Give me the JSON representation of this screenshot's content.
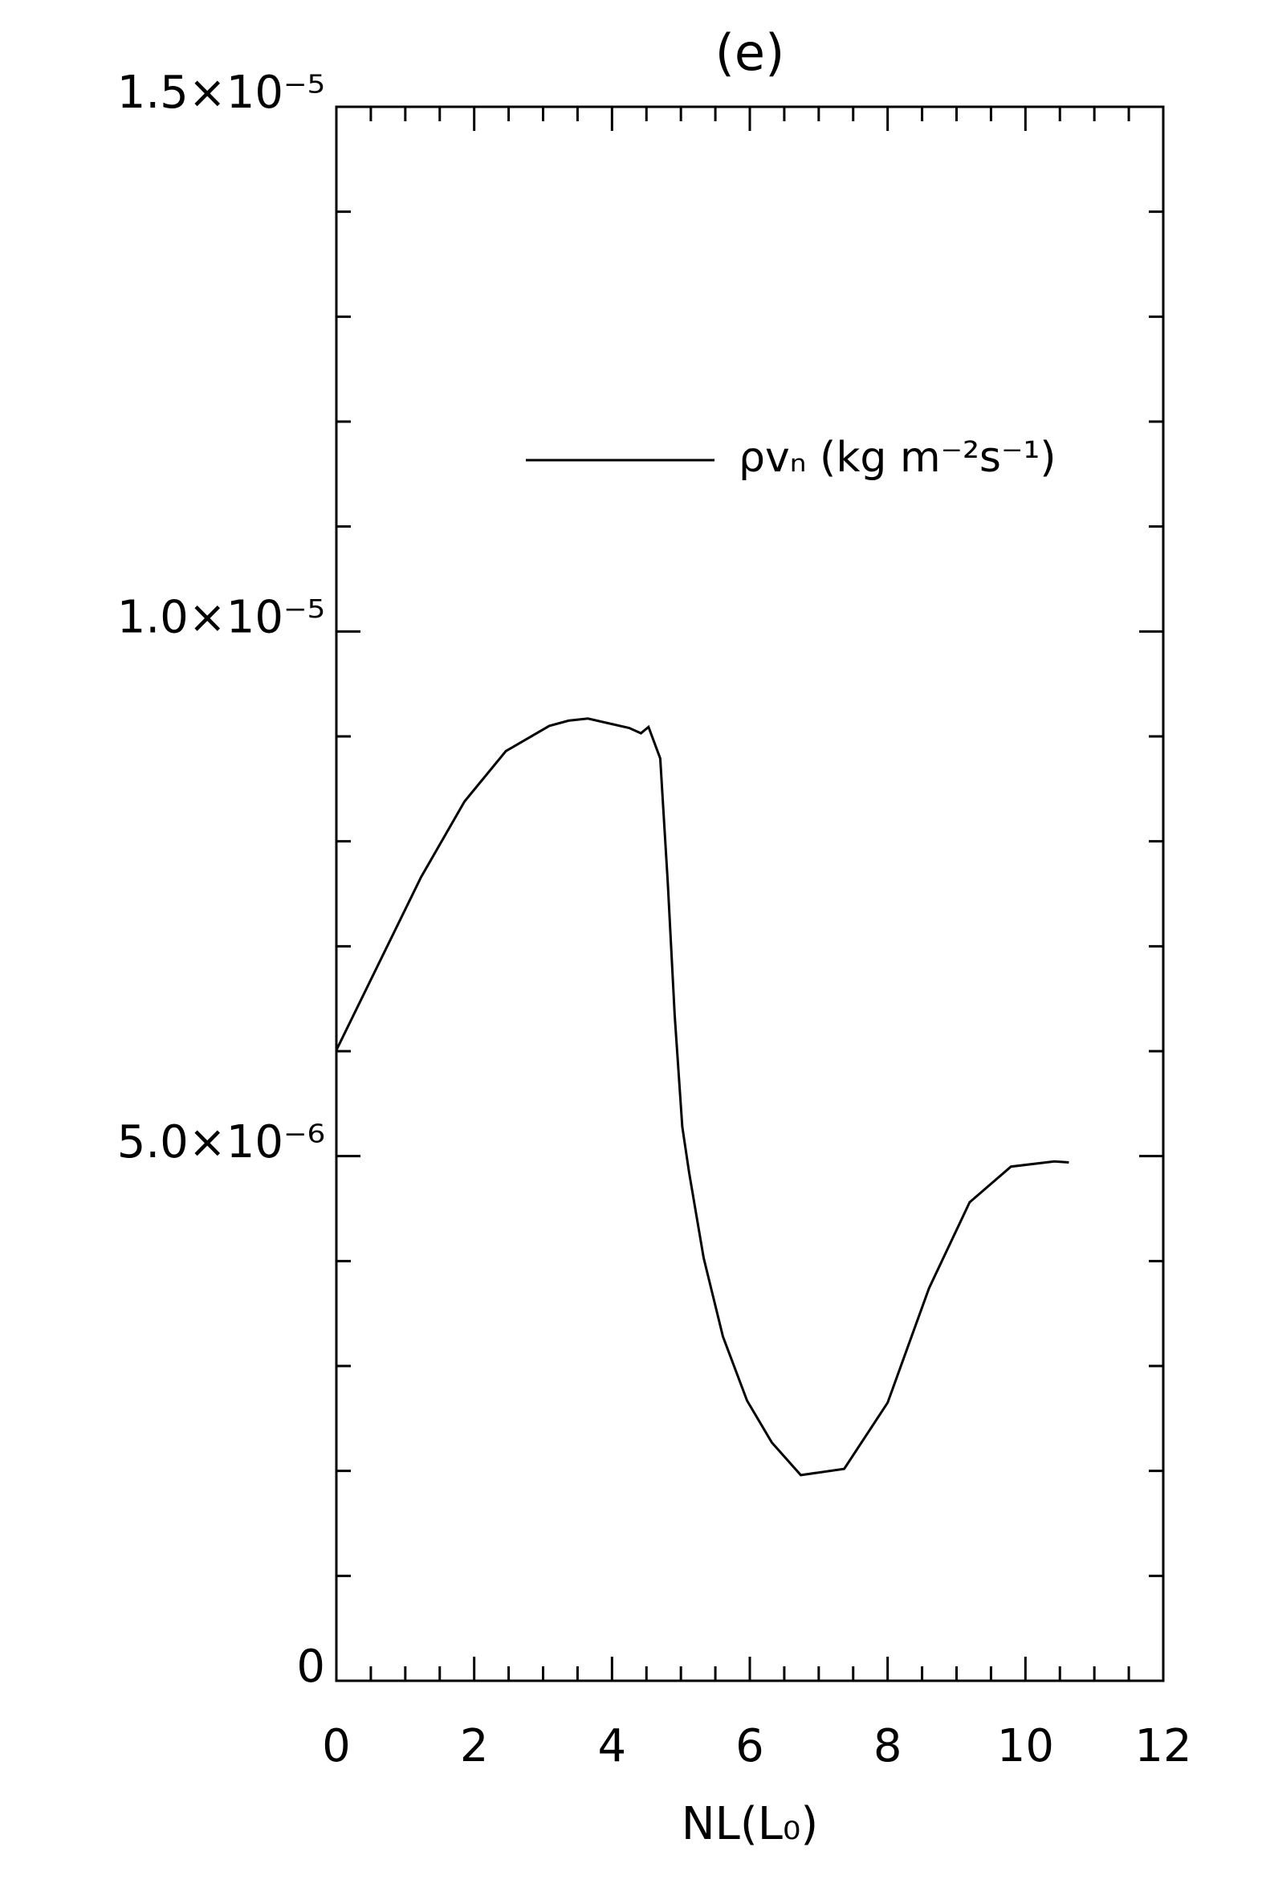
{
  "chart_data": {
    "type": "line",
    "title": "(e)",
    "x_label": "NL(L₀)",
    "legend_position": "upper right",
    "series": [
      {
        "name": "ρvₙ (kg m⁻²s⁻¹)",
        "color": "#000000",
        "x": [
          0,
          1.23,
          1.86,
          2.46,
          3.09,
          3.37,
          3.65,
          4.25,
          4.42,
          4.53,
          4.7,
          4.81,
          4.91,
          5.02,
          5.12,
          5.33,
          5.61,
          5.96,
          6.32,
          6.74,
          7.37,
          8.0,
          8.6,
          9.19,
          9.79,
          10.42,
          10.63
        ],
        "values": [
          6.01e-06,
          7.66e-06,
          8.38e-06,
          8.86e-06,
          9.1e-06,
          9.15e-06,
          9.17e-06,
          9.08e-06,
          9.03e-06,
          9.09e-06,
          8.79e-06,
          7.6e-06,
          6.34e-06,
          5.28e-06,
          4.84e-06,
          4.03e-06,
          3.28e-06,
          2.67e-06,
          2.27e-06,
          1.96e-06,
          2.02e-06,
          2.65e-06,
          3.74e-06,
          4.56e-06,
          4.9e-06,
          4.95e-06,
          4.94e-06
        ]
      }
    ],
    "xlim": [
      0,
      12
    ],
    "xticks": [
      0,
      2,
      4,
      6,
      8,
      10,
      12
    ],
    "xminorticks": [
      0.5,
      1,
      1.5,
      2.5,
      3,
      3.5,
      4.5,
      5,
      5.5,
      6.5,
      7,
      7.5,
      8.5,
      9,
      9.5,
      10.5,
      11,
      11.5
    ],
    "ylim": [
      0,
      1.5e-05
    ],
    "yticks": [
      0,
      {
        "value": 5e-06,
        "label": "5.0×10⁻⁶"
      },
      {
        "value": 1e-05,
        "label": "1.0×10⁻⁵"
      },
      {
        "value": 1.5e-05,
        "label": "1.5×10⁻⁵"
      }
    ],
    "yminorticks": [
      1e-06,
      2e-06,
      3e-06,
      4e-06,
      6e-06,
      7e-06,
      8e-06,
      9e-06,
      1.1e-05,
      1.2e-05,
      1.3e-05,
      1.4e-05
    ]
  }
}
